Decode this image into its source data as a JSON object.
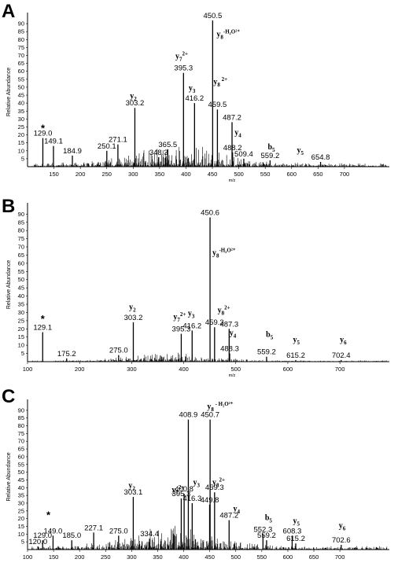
{
  "figure": {
    "text_color": "#000000",
    "background": "#ffffff"
  },
  "chart_data": [
    {
      "panel_label": "A",
      "type": "bar",
      "ylabel": "Relative Abundance",
      "xlabel": "m/z",
      "xlim": [
        100,
        785
      ],
      "ylim": [
        0,
        94
      ],
      "xticks": [
        150,
        200,
        250,
        300,
        350,
        400,
        450,
        500,
        550,
        600,
        650,
        700
      ],
      "yticks": [
        5,
        10,
        15,
        20,
        25,
        30,
        35,
        40,
        45,
        50,
        55,
        60,
        65,
        70,
        75,
        80,
        85,
        90
      ],
      "star_marker": {
        "text": "*",
        "x": 129.0,
        "y": 22
      },
      "peaks": [
        {
          "mz": 129.0,
          "y": 18,
          "label": "129.0"
        },
        {
          "mz": 149.1,
          "y": 13,
          "label": "149.1"
        },
        {
          "mz": 184.9,
          "y": 7,
          "label": "184.9"
        },
        {
          "mz": 250.1,
          "y": 10,
          "label": "250.1"
        },
        {
          "mz": 271.1,
          "y": 14,
          "label": "271.1"
        },
        {
          "mz": 303.2,
          "y": 37,
          "label": "303.2"
        },
        {
          "mz": 348.3,
          "y": 6,
          "label": "348.3"
        },
        {
          "mz": 365.5,
          "y": 11,
          "label": "365.5"
        },
        {
          "mz": 395.3,
          "y": 59,
          "label": "395.3"
        },
        {
          "mz": 416.2,
          "y": 40,
          "label": "416.2"
        },
        {
          "mz": 450.5,
          "y": 92,
          "label": "450.5"
        },
        {
          "mz": 459.5,
          "y": 36,
          "label": "459.5"
        },
        {
          "mz": 487.2,
          "y": 28,
          "label": "487.2"
        },
        {
          "mz": 488.2,
          "y": 9,
          "label": "488.2"
        },
        {
          "mz": 509.4,
          "y": 5,
          "label": "509.4"
        },
        {
          "mz": 559.2,
          "y": 4,
          "label": "559.2"
        },
        {
          "mz": 654.8,
          "y": 3,
          "label": "654.8"
        }
      ],
      "ion_labels": [
        {
          "base": "y",
          "sub": "2",
          "sup": "",
          "mz": 294,
          "y": 43
        },
        {
          "base": "y",
          "sub": "7",
          "sup": "2+",
          "mz": 380,
          "y": 68
        },
        {
          "base": "y",
          "sub": "3",
          "sup": "",
          "mz": 405,
          "y": 48
        },
        {
          "base": "y",
          "sub": "8",
          "sup": "-H₂O²⁺",
          "mz": 458,
          "y": 82
        },
        {
          "base": "y",
          "sub": "8",
          "sup": " 2+",
          "mz": 452,
          "y": 52
        },
        {
          "base": "y",
          "sub": "4",
          "sup": "",
          "mz": 492,
          "y": 20
        },
        {
          "base": "b",
          "sub": "5",
          "sup": "",
          "mz": 555,
          "y": 11
        },
        {
          "base": "y",
          "sub": "5",
          "sup": "",
          "mz": 610,
          "y": 9
        }
      ]
    },
    {
      "panel_label": "B",
      "type": "bar",
      "ylabel": "Relative Abundance",
      "xlabel": "m/z",
      "xlim": [
        100,
        795
      ],
      "ylim": [
        0,
        94
      ],
      "xticks": [
        100,
        200,
        300,
        400,
        500,
        600,
        700
      ],
      "yticks": [
        5,
        10,
        15,
        20,
        25,
        30,
        35,
        40,
        45,
        50,
        55,
        60,
        65,
        70,
        75,
        80,
        85,
        90
      ],
      "star_marker": {
        "text": "*",
        "x": 129.1,
        "y": 24
      },
      "peaks": [
        {
          "mz": 129.1,
          "y": 18,
          "label": "129.1"
        },
        {
          "mz": 175.2,
          "y": 2,
          "label": "175.2"
        },
        {
          "mz": 275.0,
          "y": 4,
          "label": "275.0"
        },
        {
          "mz": 303.2,
          "y": 24,
          "label": "303.2"
        },
        {
          "mz": 395.3,
          "y": 17,
          "label": "395.3"
        },
        {
          "mz": 416.2,
          "y": 19,
          "label": "416.2"
        },
        {
          "mz": 450.6,
          "y": 88,
          "label": "450.6"
        },
        {
          "mz": 459.3,
          "y": 21,
          "label": "459.3"
        },
        {
          "mz": 487.3,
          "y": 20,
          "label": "487.3"
        },
        {
          "mz": 488.3,
          "y": 5,
          "label": "488.3"
        },
        {
          "mz": 559.2,
          "y": 3,
          "label": "559.2"
        },
        {
          "mz": 615.2,
          "y": 1,
          "label": "615.2"
        },
        {
          "mz": 702.4,
          "y": 1,
          "label": "702.4"
        }
      ],
      "ion_labels": [
        {
          "base": "y",
          "sub": "2",
          "sup": "",
          "mz": 295,
          "y": 32
        },
        {
          "base": "y",
          "sub": "7",
          "sup": "2+",
          "mz": 380,
          "y": 26
        },
        {
          "base": "y",
          "sub": "3",
          "sup": "",
          "mz": 408,
          "y": 28
        },
        {
          "base": "y",
          "sub": "8",
          "sup": "-H₂O²⁺",
          "mz": 455,
          "y": 65
        },
        {
          "base": "y",
          "sub": "8",
          "sup": "2+",
          "mz": 465,
          "y": 30
        },
        {
          "base": "y",
          "sub": "4",
          "sup": "",
          "mz": 488,
          "y": 16
        },
        {
          "base": "b",
          "sub": "5",
          "sup": "",
          "mz": 558,
          "y": 15
        },
        {
          "base": "y",
          "sub": "5",
          "sup": "",
          "mz": 610,
          "y": 12
        },
        {
          "base": "y",
          "sub": "6",
          "sup": "",
          "mz": 700,
          "y": 12
        }
      ]
    },
    {
      "panel_label": "C",
      "type": "bar",
      "ylabel": "Relative Abundance",
      "xlabel": "",
      "xlim": [
        100,
        795
      ],
      "ylim": [
        0,
        94
      ],
      "xticks": [
        100,
        150,
        200,
        250,
        300,
        350,
        400,
        450,
        500,
        550,
        600,
        650,
        700
      ],
      "yticks": [
        5,
        10,
        15,
        20,
        25,
        30,
        35,
        40,
        45,
        50,
        55,
        60,
        65,
        70,
        75,
        80,
        85,
        90
      ],
      "star_marker": {
        "text": "*",
        "x": 140,
        "y": 20
      },
      "peaks": [
        {
          "mz": 120.0,
          "y": 2,
          "label": "120.0"
        },
        {
          "mz": 129.0,
          "y": 6,
          "label": "129.0"
        },
        {
          "mz": 149.0,
          "y": 9,
          "label": "149.0"
        },
        {
          "mz": 185.0,
          "y": 6,
          "label": "185.0"
        },
        {
          "mz": 227.1,
          "y": 11,
          "label": "227.1"
        },
        {
          "mz": 275.0,
          "y": 9,
          "label": "275.0"
        },
        {
          "mz": 303.1,
          "y": 34,
          "label": "303.1"
        },
        {
          "mz": 334.4,
          "y": 7,
          "label": "334.4"
        },
        {
          "mz": 395.3,
          "y": 33,
          "label": "395.3"
        },
        {
          "mz": 400.8,
          "y": 36,
          "label": "400.8"
        },
        {
          "mz": 408.9,
          "y": 84,
          "label": "408.9"
        },
        {
          "mz": 416.3,
          "y": 30,
          "label": "416.3"
        },
        {
          "mz": 449.8,
          "y": 29,
          "label": "449.8"
        },
        {
          "mz": 450.7,
          "y": 84,
          "label": "450.7"
        },
        {
          "mz": 459.3,
          "y": 37,
          "label": "459.3"
        },
        {
          "mz": 487.2,
          "y": 19,
          "label": "487.2"
        },
        {
          "mz": 552.3,
          "y": 10,
          "label": "552.3"
        },
        {
          "mz": 559.2,
          "y": 6,
          "label": "559.2"
        },
        {
          "mz": 608.3,
          "y": 9,
          "label": "608.3"
        },
        {
          "mz": 615.2,
          "y": 4,
          "label": "615.2"
        },
        {
          "mz": 702.6,
          "y": 3,
          "label": "702.6"
        }
      ],
      "ion_labels": [
        {
          "base": "y",
          "sub": "2",
          "sup": "",
          "mz": 294,
          "y": 40
        },
        {
          "base": "y",
          "sub": "7",
          "sup": "2+",
          "mz": 377,
          "y": 37
        },
        {
          "base": "y",
          "sub": "3",
          "sup": "",
          "mz": 418,
          "y": 42
        },
        {
          "base": "y",
          "sub": "8",
          "sup": " - H₂O²⁺",
          "mz": 445,
          "y": 91
        },
        {
          "base": "y",
          "sub": "8",
          "sup": "2+",
          "mz": 455,
          "y": 42
        },
        {
          "base": "y",
          "sub": "4",
          "sup": "",
          "mz": 495,
          "y": 25
        },
        {
          "base": "b",
          "sub": "5",
          "sup": "",
          "mz": 556,
          "y": 19
        },
        {
          "base": "y",
          "sub": "5",
          "sup": "",
          "mz": 610,
          "y": 17
        },
        {
          "base": "y",
          "sub": "6",
          "sup": "",
          "mz": 698,
          "y": 14
        }
      ]
    }
  ]
}
